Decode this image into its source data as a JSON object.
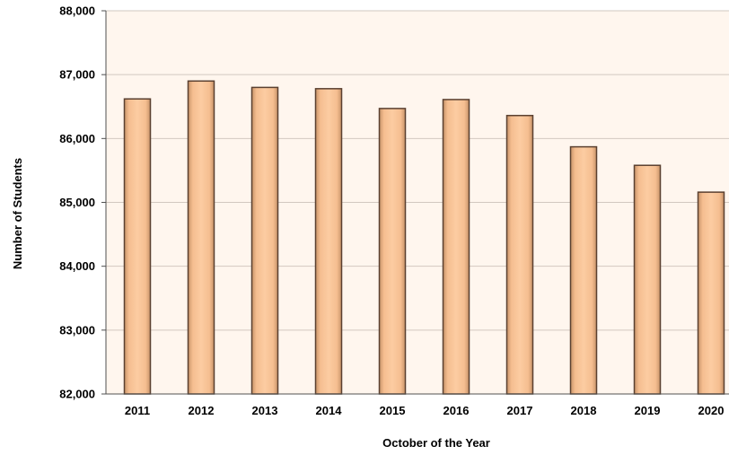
{
  "chart_data": {
    "type": "bar",
    "title": "",
    "xlabel": "October of the Year",
    "ylabel": "Number of Students",
    "categories": [
      "2011",
      "2012",
      "2013",
      "2014",
      "2015",
      "2016",
      "2017",
      "2018",
      "2019",
      "2020"
    ],
    "values": [
      86620,
      86900,
      86800,
      86780,
      86470,
      86610,
      86360,
      85870,
      85580,
      85160
    ],
    "ylim": [
      82000,
      88000
    ],
    "yticks": [
      82000,
      83000,
      84000,
      85000,
      86000,
      87000,
      88000
    ],
    "ytick_labels": [
      "82,000",
      "83,000",
      "84,000",
      "85,000",
      "86,000",
      "87,000",
      "88,000"
    ],
    "grid": true,
    "legend": "none",
    "colors": {
      "bar_fill": "#FAC496",
      "bar_edge": "#5A4030",
      "plot_background": "#FFF6EE",
      "grid": "#D2C8C0",
      "axis": "#505050"
    }
  }
}
